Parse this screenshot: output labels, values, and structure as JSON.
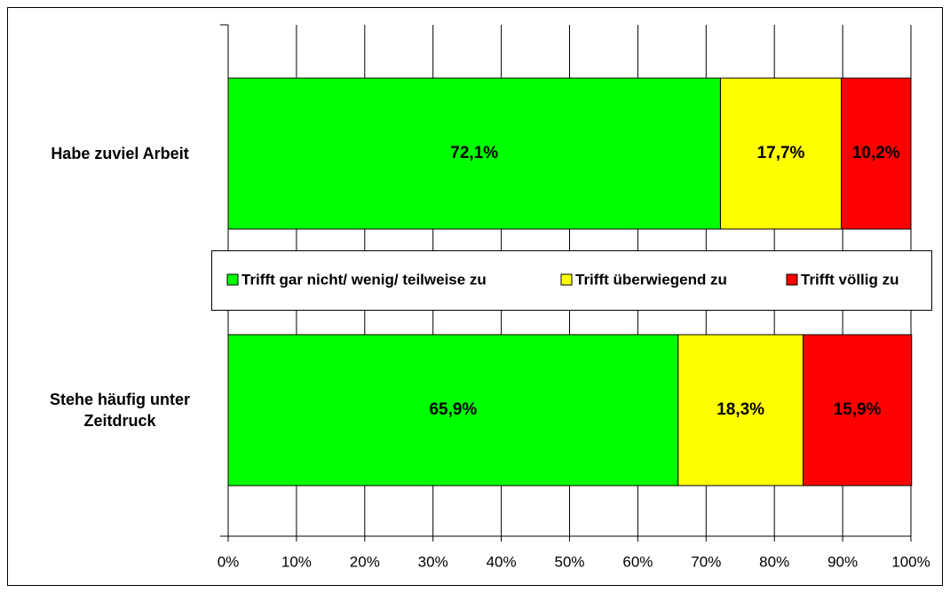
{
  "chart_data": {
    "type": "stacked_bar_horizontal",
    "categories": [
      "Habe zuviel Arbeit",
      "Stehe häufig unter Zeitdruck"
    ],
    "series": [
      {
        "name": "Trifft gar nicht/ wenig/ teilweise zu",
        "color": "#00ff00",
        "values": [
          72.1,
          65.9
        ],
        "value_labels": [
          "72,1%",
          "65,9%"
        ]
      },
      {
        "name": "Trifft überwiegend zu",
        "color": "#ffff00",
        "values": [
          17.7,
          18.3
        ],
        "value_labels": [
          "17,7%",
          "18,3%"
        ]
      },
      {
        "name": "Trifft völlig zu",
        "color": "#ff0000",
        "values": [
          10.2,
          15.9
        ],
        "value_labels": [
          "10,2%",
          "15,9%"
        ]
      }
    ],
    "xlim": [
      0,
      100
    ],
    "xticks": [
      {
        "value": 0,
        "label": "0%"
      },
      {
        "value": 10,
        "label": "10%"
      },
      {
        "value": 20,
        "label": "20%"
      },
      {
        "value": 30,
        "label": "30%"
      },
      {
        "value": 40,
        "label": "40%"
      },
      {
        "value": 50,
        "label": "50%"
      },
      {
        "value": 60,
        "label": "60%"
      },
      {
        "value": 70,
        "label": "70%"
      },
      {
        "value": 80,
        "label": "80%"
      },
      {
        "value": 90,
        "label": "90%"
      },
      {
        "value": 100,
        "label": "100%"
      }
    ],
    "grid": true,
    "legend": "center"
  }
}
